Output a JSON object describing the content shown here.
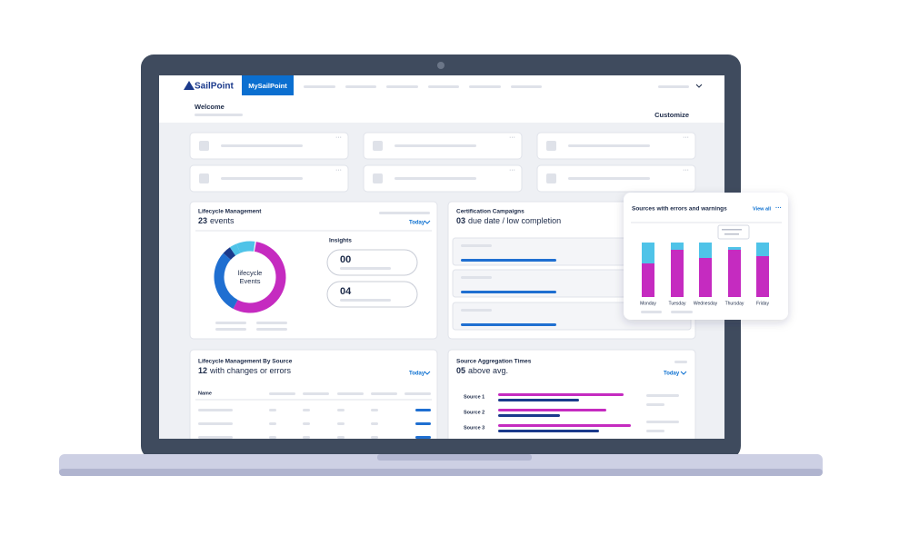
{
  "nav": {
    "logo": "SailPoint",
    "tab": "MySailPoint"
  },
  "header": {
    "title": "Welcome",
    "action": "Customize"
  },
  "lifecycle": {
    "title": "Lifecycle Management",
    "count": "23",
    "count_text": "events",
    "filter": "Today",
    "donut_label": [
      "lifecycle",
      "Events"
    ],
    "insights_title": "Insights",
    "insights": [
      "00",
      "04"
    ]
  },
  "certification": {
    "title": "Certification Campaigns",
    "count": "03",
    "count_text": "due date / low completion"
  },
  "sources_popup": {
    "title": "Sources with errors and warnings",
    "link": "View all",
    "days": [
      "Monday",
      "Tuesday",
      "Wednesday",
      "Thursday",
      "Friday"
    ]
  },
  "by_source": {
    "title": "Lifecycle Management By Source",
    "count": "12",
    "count_text": "with changes or errors",
    "filter": "Today",
    "column": "Name"
  },
  "aggregation": {
    "title": "Source Aggregation Times",
    "count": "05",
    "count_text": "above avg.",
    "filter": "Today",
    "sources": [
      "Source 1",
      "Source 2",
      "Source 3"
    ]
  }
}
